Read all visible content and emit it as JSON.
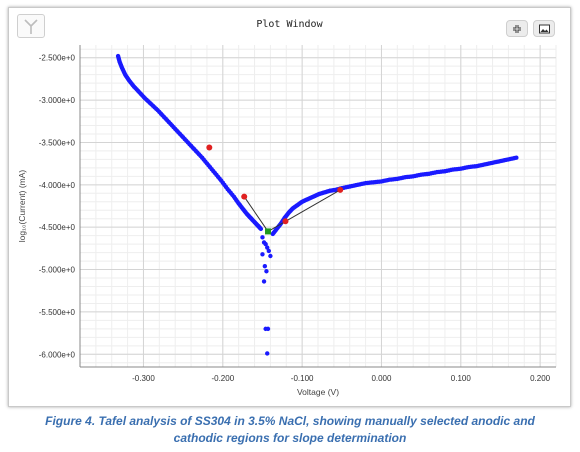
{
  "window": {
    "title": "Plot Window"
  },
  "icons": {
    "logo": "app-logo-icon",
    "fit": "fit-view-icon",
    "snapshot": "image-snapshot-icon"
  },
  "caption": {
    "line1": "Figure 4. Tafel analysis of SS304 in 3.5% NaCl, showing manually selected anodic and",
    "line2": "cathodic regions for slope determination"
  },
  "colors": {
    "data": "#1a1aff",
    "selected": "#e02020",
    "corrosion": "#1e9a1e",
    "caption": "#3a6fb0"
  },
  "chart_data": {
    "type": "scatter",
    "xlabel": "Voltage (V)",
    "ylabel": "log₁₀(Current) (mA)",
    "xlim": [
      -0.38,
      0.22
    ],
    "ylim": [
      -6.15,
      -2.35
    ],
    "grid": true,
    "x_ticks": [
      "-0.300",
      "-0.200",
      "-0.100",
      "0.000",
      "0.100",
      "0.200"
    ],
    "x_tick_values": [
      -0.3,
      -0.2,
      -0.1,
      0.0,
      0.1,
      0.2
    ],
    "y_ticks": [
      "-2.500e+0",
      "-3.000e+0",
      "-3.500e+0",
      "-4.000e+0",
      "-4.500e+0",
      "-5.000e+0",
      "-5.500e+0",
      "-6.000e+0"
    ],
    "y_tick_values": [
      -2.5,
      -3.0,
      -3.5,
      -4.0,
      -4.5,
      -5.0,
      -5.5,
      -6.0
    ],
    "series": [
      {
        "role": "cathodic-branch",
        "x": [
          -0.332,
          -0.33,
          -0.327,
          -0.323,
          -0.318,
          -0.312,
          -0.305,
          -0.298,
          -0.29,
          -0.282,
          -0.274,
          -0.266,
          -0.258,
          -0.25,
          -0.242,
          -0.234,
          -0.226,
          -0.218,
          -0.21,
          -0.202,
          -0.194,
          -0.186,
          -0.18,
          -0.175,
          -0.17,
          -0.166,
          -0.162,
          -0.158,
          -0.155,
          -0.152
        ],
        "y": [
          -2.48,
          -2.55,
          -2.62,
          -2.7,
          -2.77,
          -2.84,
          -2.91,
          -2.98,
          -3.05,
          -3.12,
          -3.2,
          -3.28,
          -3.36,
          -3.44,
          -3.52,
          -3.6,
          -3.68,
          -3.77,
          -3.86,
          -3.95,
          -4.05,
          -4.14,
          -4.22,
          -4.28,
          -4.34,
          -4.38,
          -4.42,
          -4.46,
          -4.49,
          -4.52
        ]
      },
      {
        "role": "near-corrosion-scatter",
        "x": [
          -0.15,
          -0.148,
          -0.146,
          -0.144,
          -0.142,
          -0.14,
          -0.15,
          -0.147,
          -0.148,
          -0.145,
          -0.146,
          -0.143,
          -0.144
        ],
        "y": [
          -4.62,
          -4.68,
          -4.7,
          -4.74,
          -4.78,
          -4.84,
          -4.82,
          -4.96,
          -5.14,
          -5.02,
          -5.7,
          -5.7,
          -5.99
        ]
      },
      {
        "role": "anodic-branch",
        "x": [
          -0.137,
          -0.132,
          -0.127,
          -0.122,
          -0.117,
          -0.112,
          -0.106,
          -0.1,
          -0.093,
          -0.086,
          -0.079,
          -0.072,
          -0.065,
          -0.058,
          -0.05,
          -0.04,
          -0.03,
          -0.02,
          -0.01,
          0.0,
          0.01,
          0.02,
          0.03,
          0.04,
          0.05,
          0.06,
          0.07,
          0.08,
          0.09,
          0.1,
          0.11,
          0.12,
          0.13,
          0.14,
          0.15,
          0.16,
          0.17
        ],
        "y": [
          -4.58,
          -4.52,
          -4.46,
          -4.39,
          -4.33,
          -4.28,
          -4.24,
          -4.2,
          -4.17,
          -4.14,
          -4.11,
          -4.09,
          -4.07,
          -4.06,
          -4.04,
          -4.02,
          -4.0,
          -3.98,
          -3.97,
          -3.96,
          -3.94,
          -3.93,
          -3.91,
          -3.9,
          -3.88,
          -3.87,
          -3.85,
          -3.84,
          -3.82,
          -3.81,
          -3.79,
          -3.78,
          -3.76,
          -3.74,
          -3.72,
          -3.7,
          -3.68
        ]
      }
    ],
    "selected_points": [
      {
        "x": -0.217,
        "y": -3.56
      },
      {
        "x": -0.173,
        "y": -4.14
      },
      {
        "x": -0.121,
        "y": -4.43
      },
      {
        "x": -0.052,
        "y": -4.06
      }
    ],
    "corrosion_point": {
      "x": -0.143,
      "y": -4.55
    },
    "fit_lines": [
      [
        {
          "x": -0.173,
          "y": -4.14
        },
        {
          "x": -0.143,
          "y": -4.55
        }
      ],
      [
        {
          "x": -0.143,
          "y": -4.55
        },
        {
          "x": -0.052,
          "y": -4.06
        }
      ]
    ]
  }
}
